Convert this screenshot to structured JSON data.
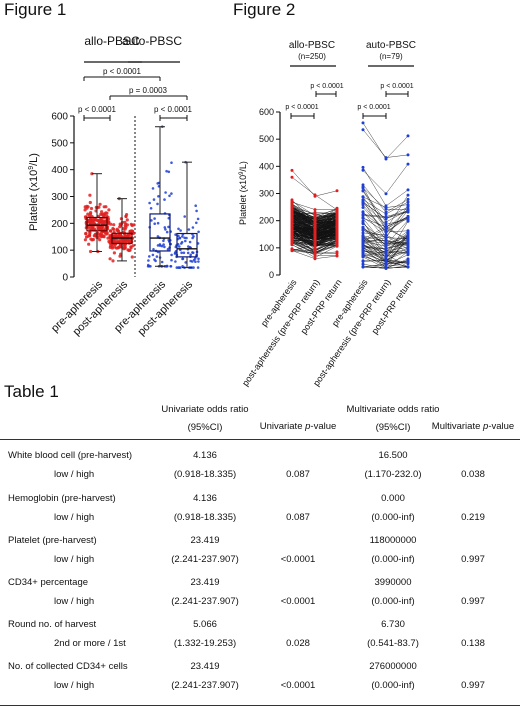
{
  "fig1": {
    "title": "Figure 1",
    "groups": [
      "allo-PBSC",
      "auto-PBSC"
    ],
    "ylabel_main": "Platelet (x10",
    "ylabel_sup": "9",
    "ylabel_tail": "/L)",
    "categories": [
      "pre-apheresis",
      "post-apheresis",
      "pre-apheresis",
      "post-apheresis"
    ],
    "p_labels": [
      "p < 0.0001",
      "p = 0.0003",
      "p < 0.0001",
      "p < 0.0001"
    ],
    "colors": {
      "allo": "#e02020",
      "auto": "#1f3fd6"
    }
  },
  "fig2": {
    "title": "Figure 2",
    "groups": [
      "allo-PBSC",
      "auto-PBSC"
    ],
    "group_n": [
      "(n=250)",
      "(n=79)"
    ],
    "ylabel_main": "Platelet (x10",
    "ylabel_sup": "9",
    "ylabel_tail": "/L)",
    "categories": [
      "pre-apheresis",
      "post-apheresis (pre-PRP return)",
      "post-PRP return",
      "pre-apheresis",
      "post-apheresis (pre-PRP return)",
      "post-PRP return"
    ],
    "p_labels": [
      "p < 0.0001",
      "p < 0.0001",
      "p < 0.0001",
      "p < 0.0001"
    ]
  },
  "chart_data": [
    {
      "type": "box",
      "title": "Figure 1",
      "ylabel": "Platelet (x10^9/L)",
      "ylim": [
        0,
        600
      ],
      "yticks": [
        0,
        100,
        200,
        300,
        400,
        500,
        600
      ],
      "categories": [
        "pre-apheresis",
        "post-apheresis",
        "pre-apheresis",
        "post-apheresis"
      ],
      "series": [
        {
          "name": "allo-PBSC",
          "boxes": [
            {
              "min": 95,
              "q1": 172,
              "median": 193,
              "q3": 222,
              "max": 385
            },
            {
              "min": 60,
              "q1": 125,
              "median": 145,
              "q3": 163,
              "max": 292
            }
          ]
        },
        {
          "name": "auto-PBSC",
          "boxes": [
            {
              "min": 40,
              "q1": 97,
              "median": 145,
              "q3": 235,
              "max": 560
            },
            {
              "min": 35,
              "q1": 75,
              "median": 105,
              "q3": 162,
              "max": 428
            }
          ]
        }
      ]
    },
    {
      "type": "line",
      "title": "Figure 2",
      "ylabel": "Platelet (x10^9/L)",
      "ylim": [
        0,
        600
      ],
      "yticks": [
        0,
        100,
        200,
        300,
        400,
        500,
        600
      ],
      "categories": [
        "pre-apheresis",
        "post-apheresis (pre-PRP return)",
        "post-PRP return"
      ],
      "series": [
        {
          "name": "allo-PBSC",
          "n": 250,
          "range_pre": [
            90,
            385
          ],
          "range_post": [
            60,
            295
          ],
          "range_return": [
            70,
            310
          ]
        },
        {
          "name": "auto-PBSC",
          "n": 79,
          "range_pre": [
            30,
            560
          ],
          "range_post": [
            25,
            432
          ],
          "range_return": [
            30,
            512
          ]
        }
      ]
    }
  ],
  "table": {
    "title": "Table 1",
    "headers": {
      "uni_or_1": "Univariate odds ratio",
      "uni_or_2": "(95%CI)",
      "uni_p_pre": "Univariate ",
      "uni_p_it": "p",
      "uni_p_post": "-value",
      "mv_or_1": "Multivariate odds ratio",
      "mv_or_2": "(95%CI)",
      "mv_p_pre": "Multivariate ",
      "mv_p_it": "p",
      "mv_p_post": "-value"
    },
    "rows": [
      {
        "name": "White blood cell (pre-harvest)",
        "sub": "low / high",
        "uor": "4.136",
        "uci": "(0.918-18.335)",
        "up": "0.087",
        "mor": "16.500",
        "mci": "(1.170-232.0)",
        "mp": "0.038"
      },
      {
        "name": "Hemoglobin (pre-harvest)",
        "sub": "low / high",
        "uor": "4.136",
        "uci": "(0.918-18.335)",
        "up": "0.087",
        "mor": "0.000",
        "mci": "(0.000-inf)",
        "mp": "0.219"
      },
      {
        "name": "Platelet (pre-harvest)",
        "sub": "low / high",
        "uor": "23.419",
        "uci": "(2.241-237.907)",
        "up": "<0.0001",
        "mor": "118000000",
        "mci": "(0.000-inf)",
        "mp": "0.997"
      },
      {
        "name": "CD34+ percentage",
        "sub": "low / high",
        "uor": "23.419",
        "uci": "(2.241-237.907)",
        "up": "<0.0001",
        "mor": "3990000",
        "mci": "(0.000-inf)",
        "mp": "0.997"
      },
      {
        "name": "Round no. of harvest",
        "sub": "2nd or more / 1st",
        "uor": "5.066",
        "uci": "(1.332-19.253)",
        "up": "0.028",
        "mor": "6.730",
        "mci": "(0.541-83.7)",
        "mp": "0.138"
      },
      {
        "name": "No. of collected CD34+ cells",
        "sub": "low / high",
        "uor": "23.419",
        "uci": "(2.241-237.907)",
        "up": "<0.0001",
        "mor": "276000000",
        "mci": "(0.000-inf)",
        "mp": "0.997"
      }
    ]
  }
}
